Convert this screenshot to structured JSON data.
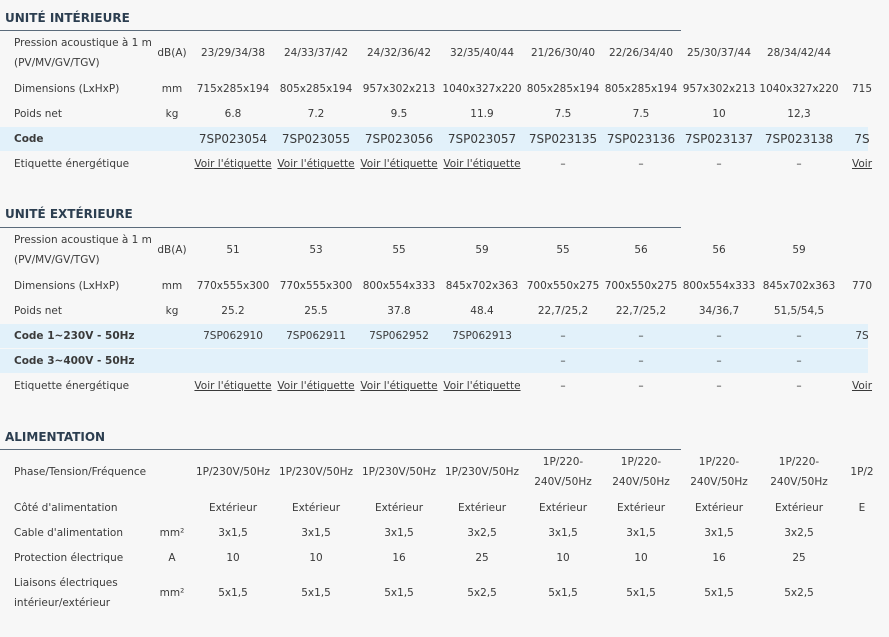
{
  "sections": [
    {
      "title": "UNITÉ INTÉRIEURE",
      "rows": [
        {
          "label": "Pression acoustique à 1 m\n(PV/MV/GV/TGV)",
          "unit": "dB(A)",
          "values": [
            "23/29/34/38",
            "24/33/37/42",
            "24/32/36/42",
            "32/35/40/44",
            "21/26/30/40",
            "22/26/34/40",
            "25/30/37/44",
            "28/34/42/44"
          ]
        },
        {
          "label": "Dimensions (LxHxP)",
          "unit": "mm",
          "values": [
            "715x285x194",
            "805x285x194",
            "957x302x213",
            "1040x327x220",
            "805x285x194",
            "805x285x194",
            "957x302x213",
            "1040x327x220",
            "715"
          ]
        },
        {
          "label": "Poids net",
          "unit": "kg",
          "values": [
            "6.8",
            "7.2",
            "9.5",
            "11.9",
            "7.5",
            "7.5",
            "10",
            "12,3"
          ]
        },
        {
          "label": "Code",
          "values": [
            "7SP023054",
            "7SP023055",
            "7SP023056",
            "7SP023057",
            "7SP023135",
            "7SP023136",
            "7SP023137",
            "7SP023138",
            "7S"
          ]
        },
        {
          "label": "Etiquette énergétique",
          "values": [
            "Voir l'étiquette",
            "Voir l'étiquette",
            "Voir l'étiquette",
            "Voir l'étiquette",
            "–",
            "–",
            "–",
            "–",
            "Voir"
          ]
        }
      ]
    },
    {
      "title": "UNITÉ EXTÉRIEURE",
      "rows": [
        {
          "label": "Pression acoustique à 1 m\n(PV/MV/GV/TGV)",
          "unit": "dB(A)",
          "values": [
            "51",
            "53",
            "55",
            "59",
            "55",
            "56",
            "56",
            "59"
          ]
        },
        {
          "label": "Dimensions (LxHxP)",
          "unit": "mm",
          "values": [
            "770x555x300",
            "770x555x300",
            "800x554x333",
            "845x702x363",
            "700x550x275",
            "700x550x275",
            "800x554x333",
            "845x702x363",
            "770"
          ]
        },
        {
          "label": "Poids net",
          "unit": "kg",
          "values": [
            "25.2",
            "25.5",
            "37.8",
            "48.4",
            "22,7/25,2",
            "22,7/25,2",
            "34/36,7",
            "51,5/54,5"
          ]
        },
        {
          "label": "Code 1~230V - 50Hz",
          "values": [
            "7SP062910",
            "7SP062911",
            "7SP062952",
            "7SP062913",
            "–",
            "–",
            "–",
            "–",
            "7S"
          ]
        },
        {
          "label": "Code 3~400V - 50Hz",
          "values": [
            null,
            null,
            null,
            null,
            "–",
            "–",
            "–",
            "–"
          ]
        },
        {
          "label": "Etiquette énergétique",
          "values": [
            "Voir l'étiquette",
            "Voir l'étiquette",
            "Voir l'étiquette",
            "Voir l'étiquette",
            "–",
            "–",
            "–",
            "–",
            "Voir"
          ]
        }
      ]
    },
    {
      "title": "ALIMENTATION",
      "rows": [
        {
          "label": "Phase/Tension/Fréquence",
          "values": [
            "1P/230V/50Hz",
            "1P/230V/50Hz",
            "1P/230V/50Hz",
            "1P/230V/50Hz",
            "1P/220-\n240V/50Hz",
            "1P/220-\n240V/50Hz",
            "1P/220-\n240V/50Hz",
            "1P/220-\n240V/50Hz",
            "1P/2"
          ]
        },
        {
          "label": "Côté d'alimentation",
          "values": [
            "Extérieur",
            "Extérieur",
            "Extérieur",
            "Extérieur",
            "Extérieur",
            "Extérieur",
            "Extérieur",
            "Extérieur",
            "E"
          ]
        },
        {
          "label": "Cable d'alimentation",
          "unit": "mm²",
          "values": [
            "3x1,5",
            "3x1,5",
            "3x1,5",
            "3x2,5",
            "3x1,5",
            "3x1,5",
            "3x1,5",
            "3x2,5"
          ]
        },
        {
          "label": "Protection électrique",
          "unit": "A",
          "values": [
            "10",
            "10",
            "16",
            "25",
            "10",
            "10",
            "16",
            "25"
          ]
        },
        {
          "label": "Liaisons électriques\nintérieur/extérieur",
          "unit": "mm²",
          "values": [
            "5x1,5",
            "5x1,5",
            "5x1,5",
            "5x2,5",
            "5x1,5",
            "5x1,5",
            "5x1,5",
            "5x2,5"
          ]
        }
      ]
    }
  ]
}
